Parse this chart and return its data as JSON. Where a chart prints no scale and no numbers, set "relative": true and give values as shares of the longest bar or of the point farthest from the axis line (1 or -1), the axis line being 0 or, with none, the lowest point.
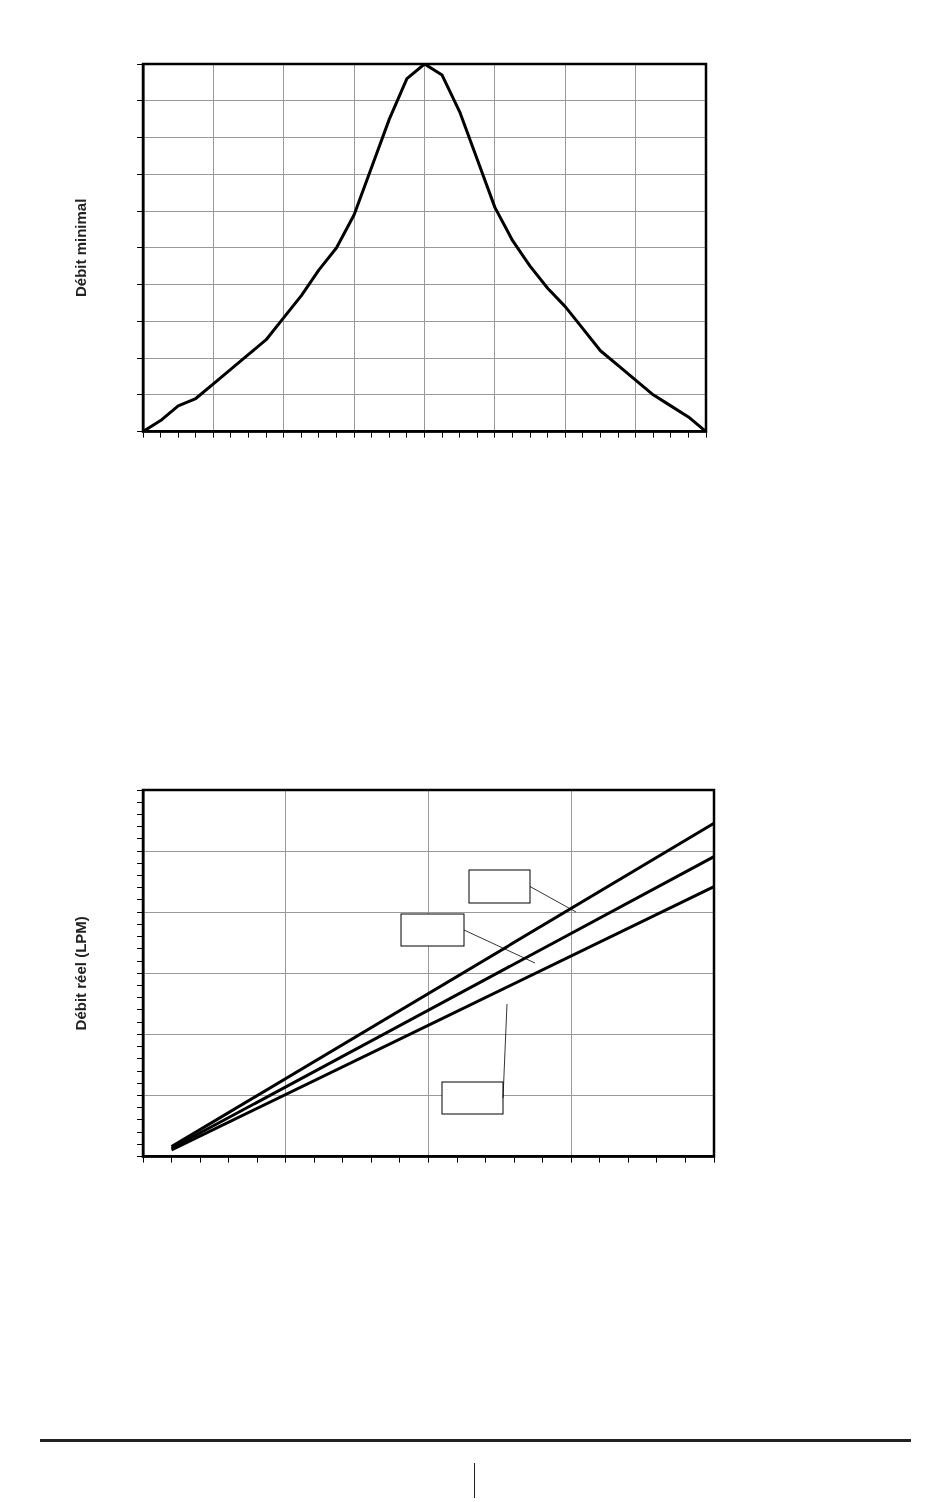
{
  "chart_data": [
    {
      "type": "line",
      "ylabel": "Débit minimal",
      "relative": true,
      "grid": true,
      "legend": false,
      "categories": [
        null,
        null,
        null,
        null,
        null,
        null,
        null,
        null,
        null,
        null,
        null,
        null,
        null,
        null,
        null,
        null,
        null,
        null,
        null,
        null,
        null,
        null,
        null,
        null,
        null,
        null,
        null,
        null,
        null,
        null,
        null,
        null,
        null
      ],
      "series": [
        {
          "color": "#000000",
          "values": [
            0,
            0.03,
            0.07,
            0.09,
            0.13,
            0.17,
            0.21,
            0.25,
            0.31,
            0.37,
            0.44,
            0.5,
            0.59,
            0.72,
            0.85,
            0.96,
            1,
            0.97,
            0.87,
            0.74,
            0.61,
            0.52,
            0.45,
            0.39,
            0.34,
            0.28,
            0.22,
            0.18,
            0.14,
            0.1,
            0.07,
            0.04,
            0
          ]
        }
      ]
    },
    {
      "type": "line",
      "ylabel": "Débit réel (LPM)",
      "relative": true,
      "grid": true,
      "legend": false,
      "categories": [
        null,
        null,
        null,
        null,
        null,
        null,
        null,
        null,
        null,
        null,
        null,
        null,
        null,
        null,
        null,
        null,
        null,
        null,
        null,
        null,
        null
      ],
      "series": [
        {
          "color": "#000000",
          "values": [
            null,
            0.03,
            null,
            null,
            null,
            null,
            null,
            null,
            null,
            null,
            null,
            null,
            null,
            null,
            null,
            null,
            null,
            null,
            null,
            null,
            1
          ]
        },
        {
          "color": "#000000",
          "values": [
            null,
            0.025,
            null,
            null,
            null,
            null,
            null,
            null,
            null,
            null,
            null,
            null,
            null,
            null,
            null,
            null,
            null,
            null,
            null,
            null,
            0.9
          ]
        },
        {
          "color": "#000000",
          "values": [
            null,
            0.02,
            null,
            null,
            null,
            null,
            null,
            null,
            null,
            null,
            null,
            null,
            null,
            null,
            null,
            null,
            null,
            null,
            null,
            null,
            0.81
          ]
        }
      ]
    }
  ]
}
